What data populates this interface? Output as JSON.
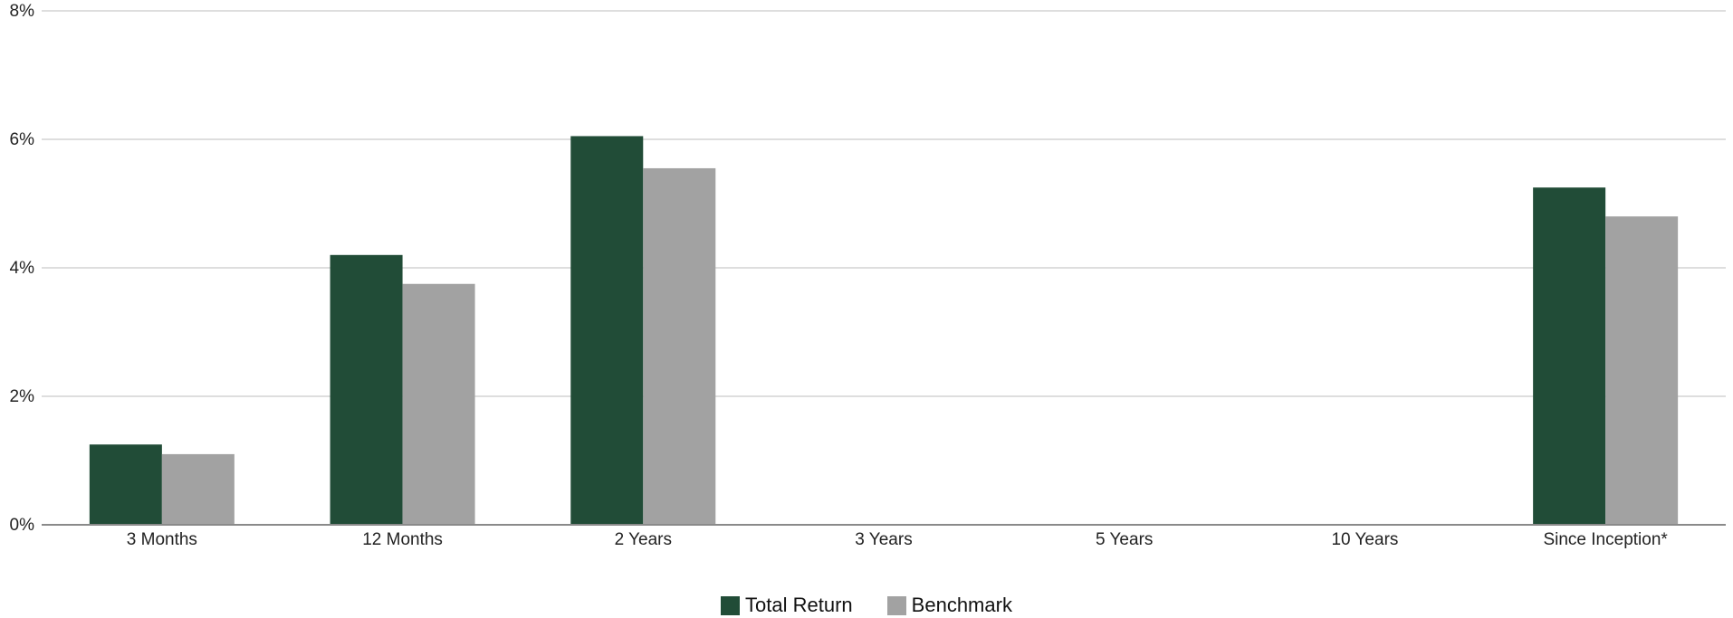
{
  "chart_data": {
    "type": "bar",
    "categories": [
      "3 Months",
      "12 Months",
      "2 Years",
      "3 Years",
      "5 Years",
      "10 Years",
      "Since Inception*"
    ],
    "series": [
      {
        "name": "Total Return",
        "color": "#214c37",
        "values": [
          1.25,
          4.2,
          6.05,
          null,
          null,
          null,
          5.25
        ]
      },
      {
        "name": "Benchmark",
        "color": "#a2a2a2",
        "values": [
          1.1,
          3.75,
          5.55,
          null,
          null,
          null,
          4.8
        ]
      }
    ],
    "ylim": [
      0,
      8
    ],
    "yticks": [
      {
        "value": 0,
        "label": "0%"
      },
      {
        "value": 2,
        "label": "2%"
      },
      {
        "value": 4,
        "label": "4%"
      },
      {
        "value": 6,
        "label": "6%"
      },
      {
        "value": 8,
        "label": "8%"
      }
    ],
    "grid": true,
    "legend_position": "bottom-center",
    "title": "",
    "xlabel": "",
    "ylabel": ""
  }
}
